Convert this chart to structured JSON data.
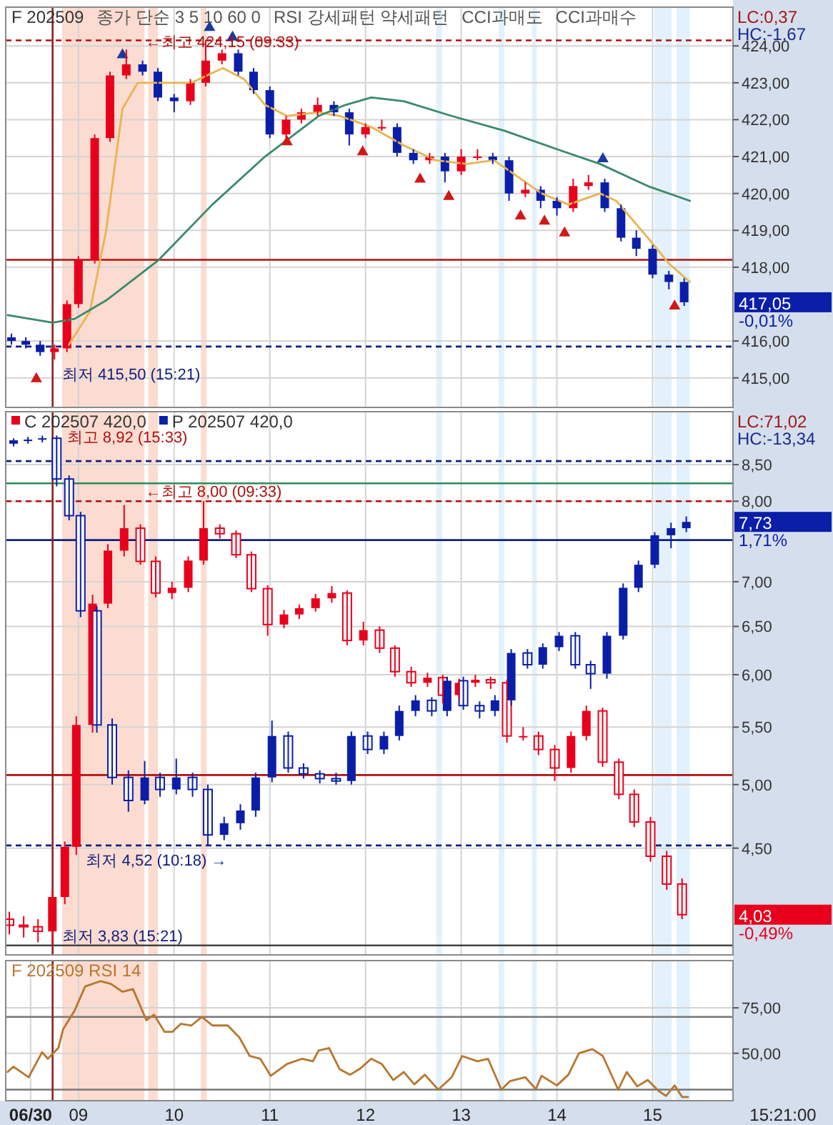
{
  "chart_data": [
    {
      "type": "candlestick",
      "title": "F 202509",
      "subtitle": "LC:0,37\nHC:-1,67",
      "annotations": [
        "종가 단순 3 5 10 60 0",
        "RSI 강세패턴  약세패턴",
        "CCI과매도",
        "CCI과매수",
        {
          "text": "←최고 424,15 (09:33)",
          "x": 9.67,
          "y": 424.15
        },
        {
          "text": "최저 415,50 (15:21)",
          "x": 8.8,
          "y": 415.5
        },
        "417,05\n-0,01%"
      ],
      "x": [
        8.3,
        8.45,
        8.6,
        8.75,
        8.88,
        9.0,
        9.17,
        9.33,
        9.5,
        9.67,
        9.83,
        10.0,
        10.17,
        10.33,
        10.5,
        10.67,
        10.83,
        11.0,
        11.17,
        11.33,
        11.5,
        11.67,
        11.83,
        12.0,
        12.17,
        12.33,
        12.5,
        12.67,
        12.83,
        13.0,
        13.17,
        13.33,
        13.5,
        13.67,
        13.83,
        14.0,
        14.17,
        14.33,
        14.5,
        14.67,
        14.83,
        15.0,
        15.17,
        15.33
      ],
      "ohlc": [
        [
          416.1,
          416.2,
          415.9,
          416.0
        ],
        [
          416.0,
          416.1,
          415.8,
          415.9
        ],
        [
          415.9,
          416.0,
          415.6,
          415.7
        ],
        [
          415.7,
          415.9,
          415.5,
          415.8
        ],
        [
          415.8,
          417.1,
          415.7,
          417.0
        ],
        [
          417.0,
          418.3,
          416.9,
          418.2
        ],
        [
          418.2,
          421.6,
          418.1,
          421.5
        ],
        [
          421.5,
          423.3,
          421.4,
          423.2
        ],
        [
          423.2,
          423.9,
          423.1,
          423.5
        ],
        [
          423.5,
          423.6,
          423.2,
          423.3
        ],
        [
          423.3,
          423.4,
          422.5,
          422.6
        ],
        [
          422.6,
          422.7,
          422.2,
          422.5
        ],
        [
          422.5,
          423.1,
          422.4,
          423.0
        ],
        [
          423.0,
          424.15,
          422.9,
          423.6
        ],
        [
          423.6,
          423.9,
          423.5,
          423.8
        ],
        [
          423.8,
          423.9,
          423.2,
          423.3
        ],
        [
          423.3,
          423.4,
          422.7,
          422.8
        ],
        [
          422.8,
          422.9,
          421.5,
          421.6
        ],
        [
          421.6,
          422.1,
          421.5,
          422.0
        ],
        [
          422.0,
          422.3,
          421.9,
          422.2
        ],
        [
          422.2,
          422.6,
          422.1,
          422.4
        ],
        [
          422.4,
          422.5,
          422.1,
          422.2
        ],
        [
          422.2,
          422.3,
          421.3,
          421.6
        ],
        [
          421.6,
          421.9,
          421.5,
          421.8
        ],
        [
          421.8,
          422.0,
          421.7,
          421.8
        ],
        [
          421.8,
          421.9,
          421.0,
          421.1
        ],
        [
          421.1,
          421.2,
          420.8,
          420.9
        ],
        [
          420.9,
          421.1,
          420.8,
          421.0
        ],
        [
          421.0,
          421.1,
          420.3,
          420.6
        ],
        [
          420.6,
          421.2,
          420.5,
          421.0
        ],
        [
          421.0,
          421.2,
          420.9,
          421.0
        ],
        [
          421.0,
          421.1,
          420.8,
          420.9
        ],
        [
          420.9,
          421.0,
          419.8,
          420.0
        ],
        [
          420.0,
          420.3,
          419.9,
          420.1
        ],
        [
          420.1,
          420.2,
          419.6,
          419.8
        ],
        [
          419.8,
          419.9,
          419.4,
          419.6
        ],
        [
          419.6,
          420.4,
          419.5,
          420.2
        ],
        [
          420.2,
          420.5,
          420.1,
          420.3
        ],
        [
          420.3,
          420.4,
          419.5,
          419.6
        ],
        [
          419.6,
          419.7,
          418.7,
          418.8
        ],
        [
          418.8,
          419.0,
          418.3,
          418.5
        ],
        [
          418.5,
          418.6,
          417.7,
          417.8
        ],
        [
          417.8,
          417.9,
          417.4,
          417.6
        ],
        [
          417.6,
          417.7,
          416.95,
          417.05
        ]
      ],
      "colors": [
        "#0a1ea8",
        "#0a1ea8",
        "#0a1ea8",
        "#e8001c",
        "#e8001c",
        "#e8001c",
        "#e8001c",
        "#e8001c",
        "#e8001c",
        "#0a1ea8",
        "#0a1ea8",
        "#0a1ea8",
        "#e8001c",
        "#e8001c",
        "#e8001c",
        "#0a1ea8",
        "#0a1ea8",
        "#0a1ea8",
        "#e8001c",
        "#e8001c",
        "#e8001c",
        "#0a1ea8",
        "#0a1ea8",
        "#e8001c",
        "#e8001c",
        "#0a1ea8",
        "#0a1ea8",
        "#e8001c",
        "#0a1ea8",
        "#e8001c",
        "#e8001c",
        "#0a1ea8",
        "#0a1ea8",
        "#e8001c",
        "#0a1ea8",
        "#0a1ea8",
        "#e8001c",
        "#e8001c",
        "#0a1ea8",
        "#0a1ea8",
        "#0a1ea8",
        "#0a1ea8",
        "#0a1ea8",
        "#0a1ea8"
      ],
      "series": [
        {
          "type": "line",
          "color": "#e8b450",
          "x": [
            8.9,
            9.12,
            9.29,
            9.46,
            9.62,
            9.84,
            10.18,
            10.51,
            10.73,
            10.95,
            11.18,
            11.51,
            11.73,
            12.06,
            12.4,
            12.73,
            13.06,
            13.34,
            13.51,
            13.84,
            14.12,
            14.45,
            14.62,
            14.95,
            15.17,
            15.39
          ],
          "values": [
            415.9,
            416.8,
            419.0,
            422.3,
            423.0,
            423.0,
            423.0,
            423.4,
            423.1,
            422.4,
            422.1,
            422.2,
            422.1,
            421.8,
            421.3,
            420.9,
            420.8,
            420.9,
            420.6,
            420.0,
            419.7,
            420.0,
            419.8,
            418.8,
            418.1,
            417.6
          ]
        },
        {
          "type": "line",
          "color": "#3a8a6a",
          "x": [
            8.26,
            8.73,
            8.96,
            9.29,
            9.84,
            10.4,
            10.95,
            11.51,
            11.79,
            12.06,
            12.4,
            12.9,
            13.45,
            14.0,
            14.45,
            14.95,
            15.39
          ],
          "values": [
            416.7,
            416.5,
            416.6,
            417.1,
            418.2,
            419.7,
            421.0,
            422.1,
            422.4,
            422.6,
            422.5,
            422.1,
            421.7,
            421.2,
            420.8,
            420.2,
            419.8
          ]
        },
        {
          "type": "scatter",
          "color": "#d01818",
          "marker": "triangle",
          "x": [
            8.56,
            11.18,
            11.97,
            12.57,
            12.87,
            13.62,
            13.87,
            14.08,
            15.23
          ],
          "values": [
            415.0,
            421.42,
            421.15,
            420.41,
            419.94,
            419.41,
            419.27,
            418.95,
            416.97
          ]
        },
        {
          "type": "scatter",
          "color": "#1a3aa0",
          "marker": "triangle",
          "x": [
            9.46,
            10.37,
            10.61,
            14.48
          ],
          "values": [
            423.78,
            424.52,
            424.26,
            420.96
          ]
        }
      ],
      "xlim": [
        8.24,
        15.84
      ],
      "ylim": [
        414.2,
        425.05
      ],
      "xticks": [
        {
          "value": 9,
          "label": null
        },
        {
          "value": 10,
          "label": null
        },
        {
          "value": 11,
          "label": null
        },
        {
          "value": 12,
          "label": null
        },
        {
          "value": 13,
          "label": null
        },
        {
          "value": 14,
          "label": null
        },
        {
          "value": 15,
          "label": null
        }
      ],
      "yticks": [
        {
          "value": 415,
          "label": "415,00"
        },
        {
          "value": 416,
          "label": "416,00"
        },
        {
          "value": 418,
          "label": "418,00"
        },
        {
          "value": 419,
          "label": "419,00"
        },
        {
          "value": 420,
          "label": "420,00"
        },
        {
          "value": 421,
          "label": "421,00"
        },
        {
          "value": 422,
          "label": "422,00"
        },
        {
          "value": 423,
          "label": "423,00"
        },
        {
          "value": 424,
          "label": "424,00"
        }
      ],
      "tick_labels": "y",
      "grid": true,
      "ref_lines": [
        {
          "axis": "y",
          "value": 418.2,
          "color": "#b01010"
        },
        {
          "axis": "y",
          "value": 424.15,
          "color": "#b01010",
          "line_style": "dashed"
        },
        {
          "axis": "y",
          "value": 415.85,
          "color": "#102080",
          "line_style": "dashed"
        },
        {
          "axis": "x",
          "value": 8.73,
          "color": "#8b2020"
        }
      ],
      "bands": [
        {
          "axis": "x",
          "from": 8.83,
          "to": 9.69,
          "color": "#fcdcd0"
        },
        {
          "axis": "x",
          "from": 9.73,
          "to": 9.83,
          "color": "#fcdcd0"
        },
        {
          "axis": "x",
          "from": 10.28,
          "to": 10.34,
          "color": "#fcdcd0"
        },
        {
          "axis": "x",
          "from": 12.74,
          "to": 12.8,
          "color": "#e2f1fb"
        },
        {
          "axis": "x",
          "from": 13.39,
          "to": 13.45,
          "color": "#e2f1fb"
        },
        {
          "axis": "x",
          "from": 13.74,
          "to": 13.79,
          "color": "#e2f1fb"
        },
        {
          "axis": "x",
          "from": 15.02,
          "to": 15.2,
          "color": "#e2f1fb"
        },
        {
          "axis": "x",
          "from": 15.25,
          "to": 15.39,
          "color": "#e2f1fb"
        }
      ]
    },
    {
      "type": "candlestick",
      "subtitle": "LC:71,02\nHC:-13,34",
      "annotations": [
        {
          "text": "최고 8,92 (15:33)",
          "x": 8.85,
          "y": 8.92
        },
        {
          "text": "←최고 8,00 (09:33)",
          "x": 9.67,
          "y": 8.0
        },
        {
          "text": "최저 4,52 (10:18) →",
          "x": 9.05,
          "y": 4.52
        },
        {
          "text": "최저 3,83 (15:21)",
          "x": 8.8,
          "y": 3.83
        },
        "7,73\n1,71%",
        "4,03\n-0,49%"
      ],
      "legend": "top left",
      "series": [
        {
          "name": "C 202507 420,0",
          "color": "#e8001c",
          "x": [
            8.3,
            8.45,
            8.6,
            8.75,
            8.88,
            9.0,
            9.17,
            9.33,
            9.5,
            9.67,
            9.83,
            10.0,
            10.17,
            10.33,
            10.5,
            10.67,
            10.83,
            11.0,
            11.17,
            11.33,
            11.5,
            11.67,
            11.83,
            12.0,
            12.17,
            12.33,
            12.5,
            12.67,
            12.83,
            13.0,
            13.17,
            13.33,
            13.5,
            13.67,
            13.83,
            14.0,
            14.17,
            14.33,
            14.5,
            14.67,
            14.83,
            15.0,
            15.17,
            15.33
          ],
          "ohlc": [
            [
              4.0,
              4.05,
              3.9,
              3.96
            ],
            [
              3.96,
              4.02,
              3.88,
              3.95
            ],
            [
              3.95,
              4.0,
              3.85,
              3.92
            ],
            [
              3.92,
              4.2,
              3.83,
              4.15
            ],
            [
              4.15,
              4.55,
              4.1,
              4.51
            ],
            [
              4.51,
              5.6,
              4.45,
              5.52
            ],
            [
              5.52,
              6.85,
              5.45,
              6.75
            ],
            [
              6.75,
              7.45,
              6.7,
              7.37
            ],
            [
              7.37,
              7.95,
              7.3,
              7.65
            ],
            [
              7.65,
              7.7,
              7.2,
              7.24
            ],
            [
              7.24,
              7.3,
              6.82,
              6.87
            ],
            [
              6.87,
              7.0,
              6.8,
              6.93
            ],
            [
              6.93,
              7.3,
              6.88,
              7.25
            ],
            [
              7.25,
              8.0,
              7.2,
              7.65
            ],
            [
              7.65,
              7.7,
              7.52,
              7.58
            ],
            [
              7.58,
              7.62,
              7.28,
              7.32
            ],
            [
              7.32,
              7.36,
              6.88,
              6.92
            ],
            [
              6.92,
              6.96,
              6.4,
              6.52
            ],
            [
              6.52,
              6.68,
              6.48,
              6.63
            ],
            [
              6.63,
              6.74,
              6.58,
              6.7
            ],
            [
              6.7,
              6.86,
              6.66,
              6.81
            ],
            [
              6.81,
              6.95,
              6.76,
              6.87
            ],
            [
              6.87,
              6.9,
              6.3,
              6.35
            ],
            [
              6.35,
              6.55,
              6.3,
              6.46
            ],
            [
              6.46,
              6.5,
              6.22,
              6.27
            ],
            [
              6.27,
              6.3,
              5.98,
              6.03
            ],
            [
              6.03,
              6.08,
              5.88,
              5.92
            ],
            [
              5.92,
              6.02,
              5.88,
              5.97
            ],
            [
              5.97,
              6.0,
              5.72,
              5.8
            ],
            [
              5.8,
              5.96,
              5.76,
              5.92
            ],
            [
              5.92,
              6.0,
              5.88,
              5.95
            ],
            [
              5.95,
              5.98,
              5.86,
              5.92
            ],
            [
              5.92,
              5.95,
              5.36,
              5.42
            ],
            [
              5.42,
              5.5,
              5.38,
              5.42
            ],
            [
              5.42,
              5.46,
              5.25,
              5.3
            ],
            [
              5.3,
              5.34,
              5.03,
              5.14
            ],
            [
              5.14,
              5.46,
              5.1,
              5.42
            ],
            [
              5.42,
              5.7,
              5.38,
              5.65
            ],
            [
              5.65,
              5.68,
              5.15,
              5.19
            ],
            [
              5.19,
              5.22,
              4.88,
              4.92
            ],
            [
              4.92,
              4.96,
              4.66,
              4.7
            ],
            [
              4.7,
              4.74,
              4.4,
              4.44
            ],
            [
              4.44,
              4.48,
              4.2,
              4.24
            ],
            [
              4.24,
              4.28,
              4.0,
              4.03
            ]
          ]
        },
        {
          "name": "P 202507 420,0",
          "color": "#0a1ea8",
          "x": [
            8.3,
            8.45,
            8.6,
            8.75,
            8.88,
            9.0,
            9.17,
            9.33,
            9.5,
            9.67,
            9.83,
            10.0,
            10.17,
            10.33,
            10.5,
            10.67,
            10.83,
            11.0,
            11.17,
            11.33,
            11.5,
            11.67,
            11.83,
            12.0,
            12.17,
            12.33,
            12.5,
            12.67,
            12.83,
            13.0,
            13.17,
            13.33,
            13.5,
            13.67,
            13.83,
            14.0,
            14.17,
            14.33,
            14.5,
            14.67,
            14.83,
            15.0,
            15.17,
            15.33
          ],
          "ohlc": [
            [
              8.8,
              8.88,
              8.76,
              8.85
            ],
            [
              8.85,
              8.9,
              8.8,
              8.86
            ],
            [
              8.86,
              8.92,
              8.82,
              8.88
            ],
            [
              8.88,
              8.92,
              8.2,
              8.3
            ],
            [
              8.3,
              8.35,
              7.75,
              7.81
            ],
            [
              7.81,
              7.86,
              6.6,
              6.67
            ],
            [
              6.67,
              6.72,
              5.45,
              5.52
            ],
            [
              5.52,
              5.58,
              5.0,
              5.06
            ],
            [
              5.06,
              5.12,
              4.78,
              4.87
            ],
            [
              4.87,
              5.2,
              4.84,
              5.06
            ],
            [
              5.06,
              5.1,
              4.9,
              4.96
            ],
            [
              4.96,
              5.22,
              4.92,
              5.06
            ],
            [
              5.06,
              5.1,
              4.9,
              4.96
            ],
            [
              4.96,
              5.0,
              4.52,
              4.6
            ],
            [
              4.6,
              4.74,
              4.56,
              4.69
            ],
            [
              4.69,
              4.84,
              4.64,
              4.79
            ],
            [
              4.79,
              5.1,
              4.74,
              5.06
            ],
            [
              5.06,
              5.56,
              5.02,
              5.42
            ],
            [
              5.42,
              5.46,
              5.1,
              5.14
            ],
            [
              5.14,
              5.18,
              5.05,
              5.09
            ],
            [
              5.09,
              5.12,
              5.01,
              5.05
            ],
            [
              5.05,
              5.1,
              5.0,
              5.03
            ],
            [
              5.03,
              5.46,
              5.0,
              5.42
            ],
            [
              5.42,
              5.46,
              5.26,
              5.3
            ],
            [
              5.3,
              5.46,
              5.26,
              5.42
            ],
            [
              5.42,
              5.7,
              5.38,
              5.65
            ],
            [
              5.65,
              5.8,
              5.6,
              5.75
            ],
            [
              5.75,
              5.78,
              5.6,
              5.65
            ],
            [
              5.65,
              5.98,
              5.6,
              5.94
            ],
            [
              5.94,
              5.98,
              5.66,
              5.7
            ],
            [
              5.7,
              5.74,
              5.58,
              5.65
            ],
            [
              5.65,
              5.8,
              5.6,
              5.75
            ],
            [
              5.75,
              6.26,
              5.7,
              6.22
            ],
            [
              6.22,
              6.26,
              6.06,
              6.1
            ],
            [
              6.1,
              6.32,
              6.06,
              6.28
            ],
            [
              6.28,
              6.44,
              6.24,
              6.4
            ],
            [
              6.4,
              6.44,
              6.06,
              6.1
            ],
            [
              6.1,
              6.14,
              5.86,
              6.01
            ],
            [
              6.01,
              6.44,
              5.96,
              6.4
            ],
            [
              6.4,
              6.98,
              6.36,
              6.93
            ],
            [
              6.93,
              7.25,
              6.88,
              7.2
            ],
            [
              7.2,
              7.6,
              7.16,
              7.56
            ],
            [
              7.56,
              7.72,
              7.4,
              7.65
            ],
            [
              7.65,
              7.8,
              7.6,
              7.73
            ]
          ]
        }
      ],
      "xlim": [
        8.24,
        15.84
      ],
      "ylim": [
        3.77,
        9.28
      ],
      "log": "y",
      "xticks": [
        {
          "value": 9,
          "label": null
        },
        {
          "value": 10,
          "label": null
        },
        {
          "value": 11,
          "label": null
        },
        {
          "value": 12,
          "label": null
        },
        {
          "value": 13,
          "label": null
        },
        {
          "value": 14,
          "label": null
        },
        {
          "value": 15,
          "label": null
        }
      ],
      "yticks": [
        {
          "value": 4.5,
          "label": "4,50"
        },
        {
          "value": 5,
          "label": "5,00"
        },
        {
          "value": 5.5,
          "label": "5,50"
        },
        {
          "value": 6,
          "label": "6,00"
        },
        {
          "value": 6.5,
          "label": "6,50"
        },
        {
          "value": 7,
          "label": "7,00"
        },
        {
          "value": 8,
          "label": "8,00"
        },
        {
          "value": 8.5,
          "label": "8,50"
        }
      ],
      "tick_labels": "y",
      "grid": true,
      "ref_lines": [
        {
          "axis": "y",
          "value": 8.55,
          "color": "#102080",
          "line_style": "dashed"
        },
        {
          "axis": "y",
          "value": 8.24,
          "color": "#2e8b57"
        },
        {
          "axis": "y",
          "value": 8.0,
          "color": "#b01010",
          "line_style": "dashed"
        },
        {
          "axis": "y",
          "value": 7.5,
          "color": "#102080"
        },
        {
          "axis": "y",
          "value": 5.08,
          "color": "#b01010"
        },
        {
          "axis": "y",
          "value": 4.52,
          "color": "#102080",
          "line_style": "dashed"
        },
        {
          "axis": "y",
          "value": 3.83,
          "color": "#444444"
        },
        {
          "axis": "x",
          "value": 8.73,
          "color": "#8b2020"
        }
      ],
      "bands": [
        {
          "axis": "x",
          "from": 8.83,
          "to": 9.69,
          "color": "#fcdcd0"
        },
        {
          "axis": "x",
          "from": 9.73,
          "to": 9.83,
          "color": "#fcdcd0"
        },
        {
          "axis": "x",
          "from": 10.28,
          "to": 10.34,
          "color": "#fcdcd0"
        },
        {
          "axis": "x",
          "from": 12.74,
          "to": 12.8,
          "color": "#e2f1fb"
        },
        {
          "axis": "x",
          "from": 13.39,
          "to": 13.45,
          "color": "#e2f1fb"
        },
        {
          "axis": "x",
          "from": 13.74,
          "to": 13.79,
          "color": "#e2f1fb"
        },
        {
          "axis": "x",
          "from": 15.02,
          "to": 15.2,
          "color": "#e2f1fb"
        },
        {
          "axis": "x",
          "from": 15.25,
          "to": 15.39,
          "color": "#e2f1fb"
        }
      ]
    },
    {
      "type": "line",
      "title": "F 202509 RSI 14",
      "xlabel": "15:21:00",
      "series": [
        {
          "color": "#b8762e",
          "x": [
            8.26,
            8.32,
            8.48,
            8.62,
            8.68,
            8.79,
            8.84,
            8.96,
            9.07,
            9.23,
            9.34,
            9.46,
            9.57,
            9.71,
            9.79,
            9.9,
            9.98,
            10.07,
            10.18,
            10.29,
            10.4,
            10.56,
            10.68,
            10.79,
            10.9,
            11.01,
            11.18,
            11.34,
            11.45,
            11.51,
            11.62,
            11.73,
            11.84,
            11.95,
            12.06,
            12.17,
            12.29,
            12.4,
            12.51,
            12.62,
            12.76,
            12.9,
            13.01,
            13.17,
            13.28,
            13.42,
            13.51,
            13.67,
            13.78,
            13.84,
            14.0,
            14.12,
            14.23,
            14.37,
            14.48,
            14.64,
            14.73,
            14.84,
            14.95,
            15.06,
            15.14,
            15.23,
            15.31,
            15.37
          ],
          "values": [
            39.7,
            42.6,
            36.8,
            50.6,
            47.0,
            52.9,
            63.2,
            73.5,
            86.8,
            89.7,
            88.2,
            83.8,
            85.3,
            68.2,
            71.2,
            61.8,
            61.8,
            66.2,
            65.3,
            70.0,
            65.3,
            65.3,
            58.8,
            48.5,
            47.0,
            37.6,
            44.1,
            47.0,
            45.6,
            51.5,
            52.9,
            41.2,
            38.2,
            41.8,
            47.0,
            44.1,
            35.3,
            39.7,
            32.9,
            38.2,
            30.0,
            36.8,
            48.5,
            45.6,
            47.0,
            30.0,
            34.7,
            36.8,
            30.3,
            37.6,
            32.3,
            38.2,
            50.0,
            52.3,
            48.5,
            30.0,
            39.7,
            31.8,
            35.3,
            29.4,
            26.5,
            32.3,
            25.9,
            25.9
          ]
        }
      ],
      "xlim": [
        8.24,
        15.84
      ],
      "ylim": [
        23.9,
        101
      ],
      "xticks": [
        {
          "value": 8.5,
          "label": "06/30"
        },
        {
          "value": 9,
          "label": "09"
        },
        {
          "value": 10,
          "label": "10"
        },
        {
          "value": 11,
          "label": "11"
        },
        {
          "value": 12,
          "label": "12"
        },
        {
          "value": 13,
          "label": "13"
        },
        {
          "value": 14,
          "label": "14"
        },
        {
          "value": 15,
          "label": "15"
        }
      ],
      "yticks": [
        {
          "value": 50,
          "label": "50,00"
        },
        {
          "value": 75,
          "label": "75,00"
        }
      ],
      "grid": true,
      "ref_lines": [
        {
          "axis": "y",
          "value": 70,
          "color": "#777777"
        },
        {
          "axis": "y",
          "value": 30,
          "color": "#777777"
        },
        {
          "axis": "x",
          "value": 8.73,
          "color": "#8b2020"
        }
      ],
      "bands": [
        {
          "axis": "x",
          "from": 8.83,
          "to": 9.69,
          "color": "#fcdcd0"
        },
        {
          "axis": "x",
          "from": 9.73,
          "to": 9.83,
          "color": "#fcdcd0"
        },
        {
          "axis": "x",
          "from": 10.28,
          "to": 10.34,
          "color": "#fcdcd0"
        },
        {
          "axis": "x",
          "from": 12.74,
          "to": 12.8,
          "color": "#e2f1fb"
        },
        {
          "axis": "x",
          "from": 13.39,
          "to": 13.45,
          "color": "#e2f1fb"
        },
        {
          "axis": "x",
          "from": 13.74,
          "to": 13.79,
          "color": "#e2f1fb"
        },
        {
          "axis": "x",
          "from": 15.02,
          "to": 15.2,
          "color": "#e2f1fb"
        },
        {
          "axis": "x",
          "from": 15.25,
          "to": 15.39,
          "color": "#e2f1fb"
        }
      ]
    }
  ]
}
